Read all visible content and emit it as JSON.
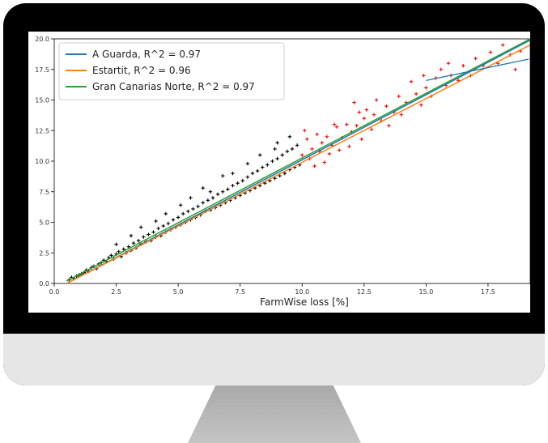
{
  "chart_data": {
    "type": "scatter",
    "xlabel": "FarmWise loss [%]",
    "ylabel": "",
    "xlim": [
      0,
      19.2
    ],
    "ylim": [
      0,
      20
    ],
    "x_ticks": [
      "0.0",
      "2.5",
      "5.0",
      "7.5",
      "10.0",
      "12.5",
      "15.0",
      "17.5"
    ],
    "y_ticks": [
      "0.0",
      "2.5",
      "5.0",
      "7.5",
      "10.0",
      "12.5",
      "15.0",
      "17.5",
      "20.0"
    ],
    "legend_position": "top-left",
    "grid": false,
    "series": [
      {
        "name": "A Guarda, R^2 = 0.97",
        "kind": "line",
        "color": "#1f77b4",
        "x": [
          0.5,
          19.2
        ],
        "y": [
          0.0,
          19.9
        ]
      },
      {
        "name": "Estartit, R^2 = 0.96",
        "kind": "line",
        "color": "#ff7f0e",
        "x": [
          0.5,
          19.2
        ],
        "y": [
          0.0,
          19.5
        ]
      },
      {
        "name": "Gran Canarias Norte, R^2 = 0.97",
        "kind": "line",
        "color": "#2ca02c",
        "x": [
          0.5,
          19.2
        ],
        "y": [
          0.2,
          20.0
        ]
      }
    ],
    "scatter_groups": [
      {
        "marker": "plus",
        "color": "#000000",
        "points": [
          [
            0.6,
            0.3
          ],
          [
            0.7,
            0.5
          ],
          [
            0.8,
            0.4
          ],
          [
            0.9,
            0.6
          ],
          [
            1.0,
            0.7
          ],
          [
            1.1,
            0.8
          ],
          [
            1.2,
            0.9
          ],
          [
            1.3,
            1.1
          ],
          [
            1.4,
            1.0
          ],
          [
            1.5,
            1.3
          ],
          [
            1.6,
            1.4
          ],
          [
            1.7,
            1.2
          ],
          [
            1.8,
            1.6
          ],
          [
            1.9,
            1.7
          ],
          [
            2.0,
            1.9
          ],
          [
            2.1,
            1.8
          ],
          [
            2.2,
            2.1
          ],
          [
            2.3,
            2.3
          ],
          [
            2.4,
            2.0
          ],
          [
            2.5,
            2.4
          ],
          [
            2.6,
            2.6
          ],
          [
            2.7,
            2.2
          ],
          [
            2.8,
            2.8
          ],
          [
            2.9,
            2.5
          ],
          [
            3.0,
            3.0
          ],
          [
            3.1,
            2.7
          ],
          [
            3.2,
            3.3
          ],
          [
            3.3,
            2.9
          ],
          [
            3.4,
            3.5
          ],
          [
            3.5,
            3.2
          ],
          [
            3.6,
            3.8
          ],
          [
            3.7,
            3.4
          ],
          [
            3.8,
            4.0
          ],
          [
            3.9,
            3.5
          ],
          [
            4.0,
            4.2
          ],
          [
            4.1,
            3.8
          ],
          [
            4.2,
            4.5
          ],
          [
            4.3,
            3.9
          ],
          [
            4.4,
            4.7
          ],
          [
            4.5,
            4.2
          ],
          [
            4.6,
            4.9
          ],
          [
            4.7,
            4.4
          ],
          [
            4.8,
            5.2
          ],
          [
            4.9,
            4.6
          ],
          [
            5.0,
            5.4
          ],
          [
            5.1,
            4.8
          ],
          [
            5.2,
            5.7
          ],
          [
            5.3,
            5.0
          ],
          [
            5.4,
            5.9
          ],
          [
            5.5,
            5.2
          ],
          [
            5.6,
            6.1
          ],
          [
            5.7,
            5.4
          ],
          [
            5.8,
            6.3
          ],
          [
            5.9,
            5.6
          ],
          [
            6.0,
            6.6
          ],
          [
            6.1,
            5.9
          ],
          [
            6.2,
            6.8
          ],
          [
            6.3,
            6.0
          ],
          [
            6.4,
            7.0
          ],
          [
            6.5,
            6.2
          ],
          [
            6.6,
            7.3
          ],
          [
            6.7,
            6.4
          ],
          [
            6.8,
            7.5
          ],
          [
            6.9,
            6.6
          ],
          [
            7.0,
            7.7
          ],
          [
            7.1,
            6.8
          ],
          [
            7.2,
            8.0
          ],
          [
            7.3,
            7.0
          ],
          [
            7.4,
            8.2
          ],
          [
            7.5,
            7.2
          ],
          [
            7.6,
            8.4
          ],
          [
            7.7,
            7.4
          ],
          [
            7.8,
            8.7
          ],
          [
            7.9,
            7.6
          ],
          [
            8.0,
            9.0
          ],
          [
            8.1,
            7.8
          ],
          [
            8.2,
            9.2
          ],
          [
            8.3,
            8.0
          ],
          [
            8.4,
            9.5
          ],
          [
            8.5,
            8.2
          ],
          [
            8.6,
            9.7
          ],
          [
            8.7,
            8.4
          ],
          [
            8.8,
            10.0
          ],
          [
            8.9,
            8.6
          ],
          [
            9.0,
            10.2
          ],
          [
            9.1,
            8.8
          ],
          [
            9.2,
            10.5
          ],
          [
            9.3,
            9.0
          ],
          [
            9.4,
            10.8
          ],
          [
            9.5,
            9.3
          ],
          [
            9.6,
            11.0
          ],
          [
            9.7,
            9.5
          ],
          [
            9.8,
            11.3
          ],
          [
            9.9,
            9.7
          ],
          [
            5.5,
            7.0
          ],
          [
            6.0,
            7.8
          ],
          [
            7.2,
            9.0
          ],
          [
            8.3,
            10.5
          ],
          [
            9.0,
            11.5
          ],
          [
            4.5,
            5.7
          ],
          [
            3.5,
            4.6
          ],
          [
            2.5,
            3.2
          ],
          [
            6.8,
            8.8
          ],
          [
            7.8,
            9.8
          ],
          [
            9.5,
            12.0
          ],
          [
            8.9,
            11.0
          ],
          [
            6.3,
            7.5
          ],
          [
            5.1,
            6.4
          ],
          [
            4.1,
            5.1
          ],
          [
            3.1,
            3.9
          ]
        ]
      },
      {
        "marker": "plus",
        "color": "#ff0000",
        "points": [
          [
            10.0,
            10.5
          ],
          [
            10.1,
            12.5
          ],
          [
            10.2,
            11.8
          ],
          [
            10.3,
            10.2
          ],
          [
            10.4,
            11.0
          ],
          [
            10.5,
            9.6
          ],
          [
            10.6,
            12.2
          ],
          [
            10.7,
            10.8
          ],
          [
            10.8,
            11.5
          ],
          [
            10.9,
            9.9
          ],
          [
            11.0,
            12.0
          ],
          [
            11.1,
            10.6
          ],
          [
            11.2,
            11.3
          ],
          [
            11.4,
            12.8
          ],
          [
            11.5,
            10.9
          ],
          [
            11.6,
            11.9
          ],
          [
            11.8,
            13.0
          ],
          [
            11.9,
            11.2
          ],
          [
            12.0,
            12.4
          ],
          [
            12.1,
            14.8
          ],
          [
            12.2,
            12.9
          ],
          [
            12.4,
            11.8
          ],
          [
            12.5,
            13.5
          ],
          [
            12.6,
            14.2
          ],
          [
            12.8,
            12.6
          ],
          [
            12.9,
            13.8
          ],
          [
            13.0,
            15.0
          ],
          [
            13.2,
            13.3
          ],
          [
            13.4,
            14.5
          ],
          [
            13.5,
            12.9
          ],
          [
            13.7,
            14.0
          ],
          [
            13.9,
            15.3
          ],
          [
            14.0,
            13.8
          ],
          [
            14.2,
            14.8
          ],
          [
            14.4,
            16.5
          ],
          [
            14.6,
            15.5
          ],
          [
            14.8,
            14.6
          ],
          [
            15.0,
            16.0
          ],
          [
            15.2,
            15.3
          ],
          [
            15.4,
            16.8
          ],
          [
            15.6,
            17.5
          ],
          [
            15.8,
            16.2
          ],
          [
            16.0,
            17.0
          ],
          [
            16.3,
            16.6
          ],
          [
            16.5,
            17.8
          ],
          [
            16.8,
            17.0
          ],
          [
            17.0,
            18.4
          ],
          [
            17.3,
            17.8
          ],
          [
            17.6,
            18.9
          ],
          [
            17.9,
            18.0
          ],
          [
            18.1,
            19.5
          ],
          [
            18.4,
            18.7
          ],
          [
            18.6,
            17.5
          ],
          [
            18.8,
            19.0
          ],
          [
            15.9,
            18.0
          ],
          [
            14.9,
            17.0
          ],
          [
            12.3,
            14.0
          ],
          [
            11.3,
            13.0
          ]
        ]
      }
    ],
    "annotation_arrow": {
      "x": 15.0,
      "y": 16.6,
      "color": "#1f77b4"
    }
  }
}
